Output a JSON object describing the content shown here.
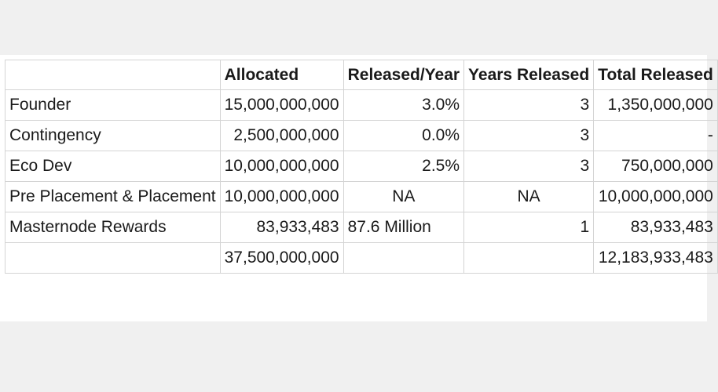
{
  "table": {
    "headers": [
      "",
      "Allocated",
      "Released/Year",
      "Years Released",
      "Total Released"
    ],
    "rows": [
      {
        "label": "Founder",
        "allocated": "15,000,000,000",
        "released_per_year": "3.0%",
        "years_released": "3",
        "total_released": "1,350,000,000"
      },
      {
        "label": "Contingency",
        "allocated": "2,500,000,000",
        "released_per_year": "0.0%",
        "years_released": "3",
        "total_released": "-"
      },
      {
        "label": "Eco Dev",
        "allocated": "10,000,000,000",
        "released_per_year": "2.5%",
        "years_released": "3",
        "total_released": "750,000,000"
      },
      {
        "label": "Pre Placement & Placement",
        "allocated": "10,000,000,000",
        "released_per_year": "NA",
        "years_released": "NA",
        "total_released": "10,000,000,000"
      },
      {
        "label": "Masternode Rewards",
        "allocated": "83,933,483",
        "released_per_year": "87.6 Million",
        "years_released": "1",
        "total_released": "83,933,483"
      }
    ],
    "totals": {
      "label": "",
      "allocated": "37,500,000,000",
      "released_per_year": "",
      "years_released": "",
      "total_released": "12,183,933,483"
    }
  }
}
